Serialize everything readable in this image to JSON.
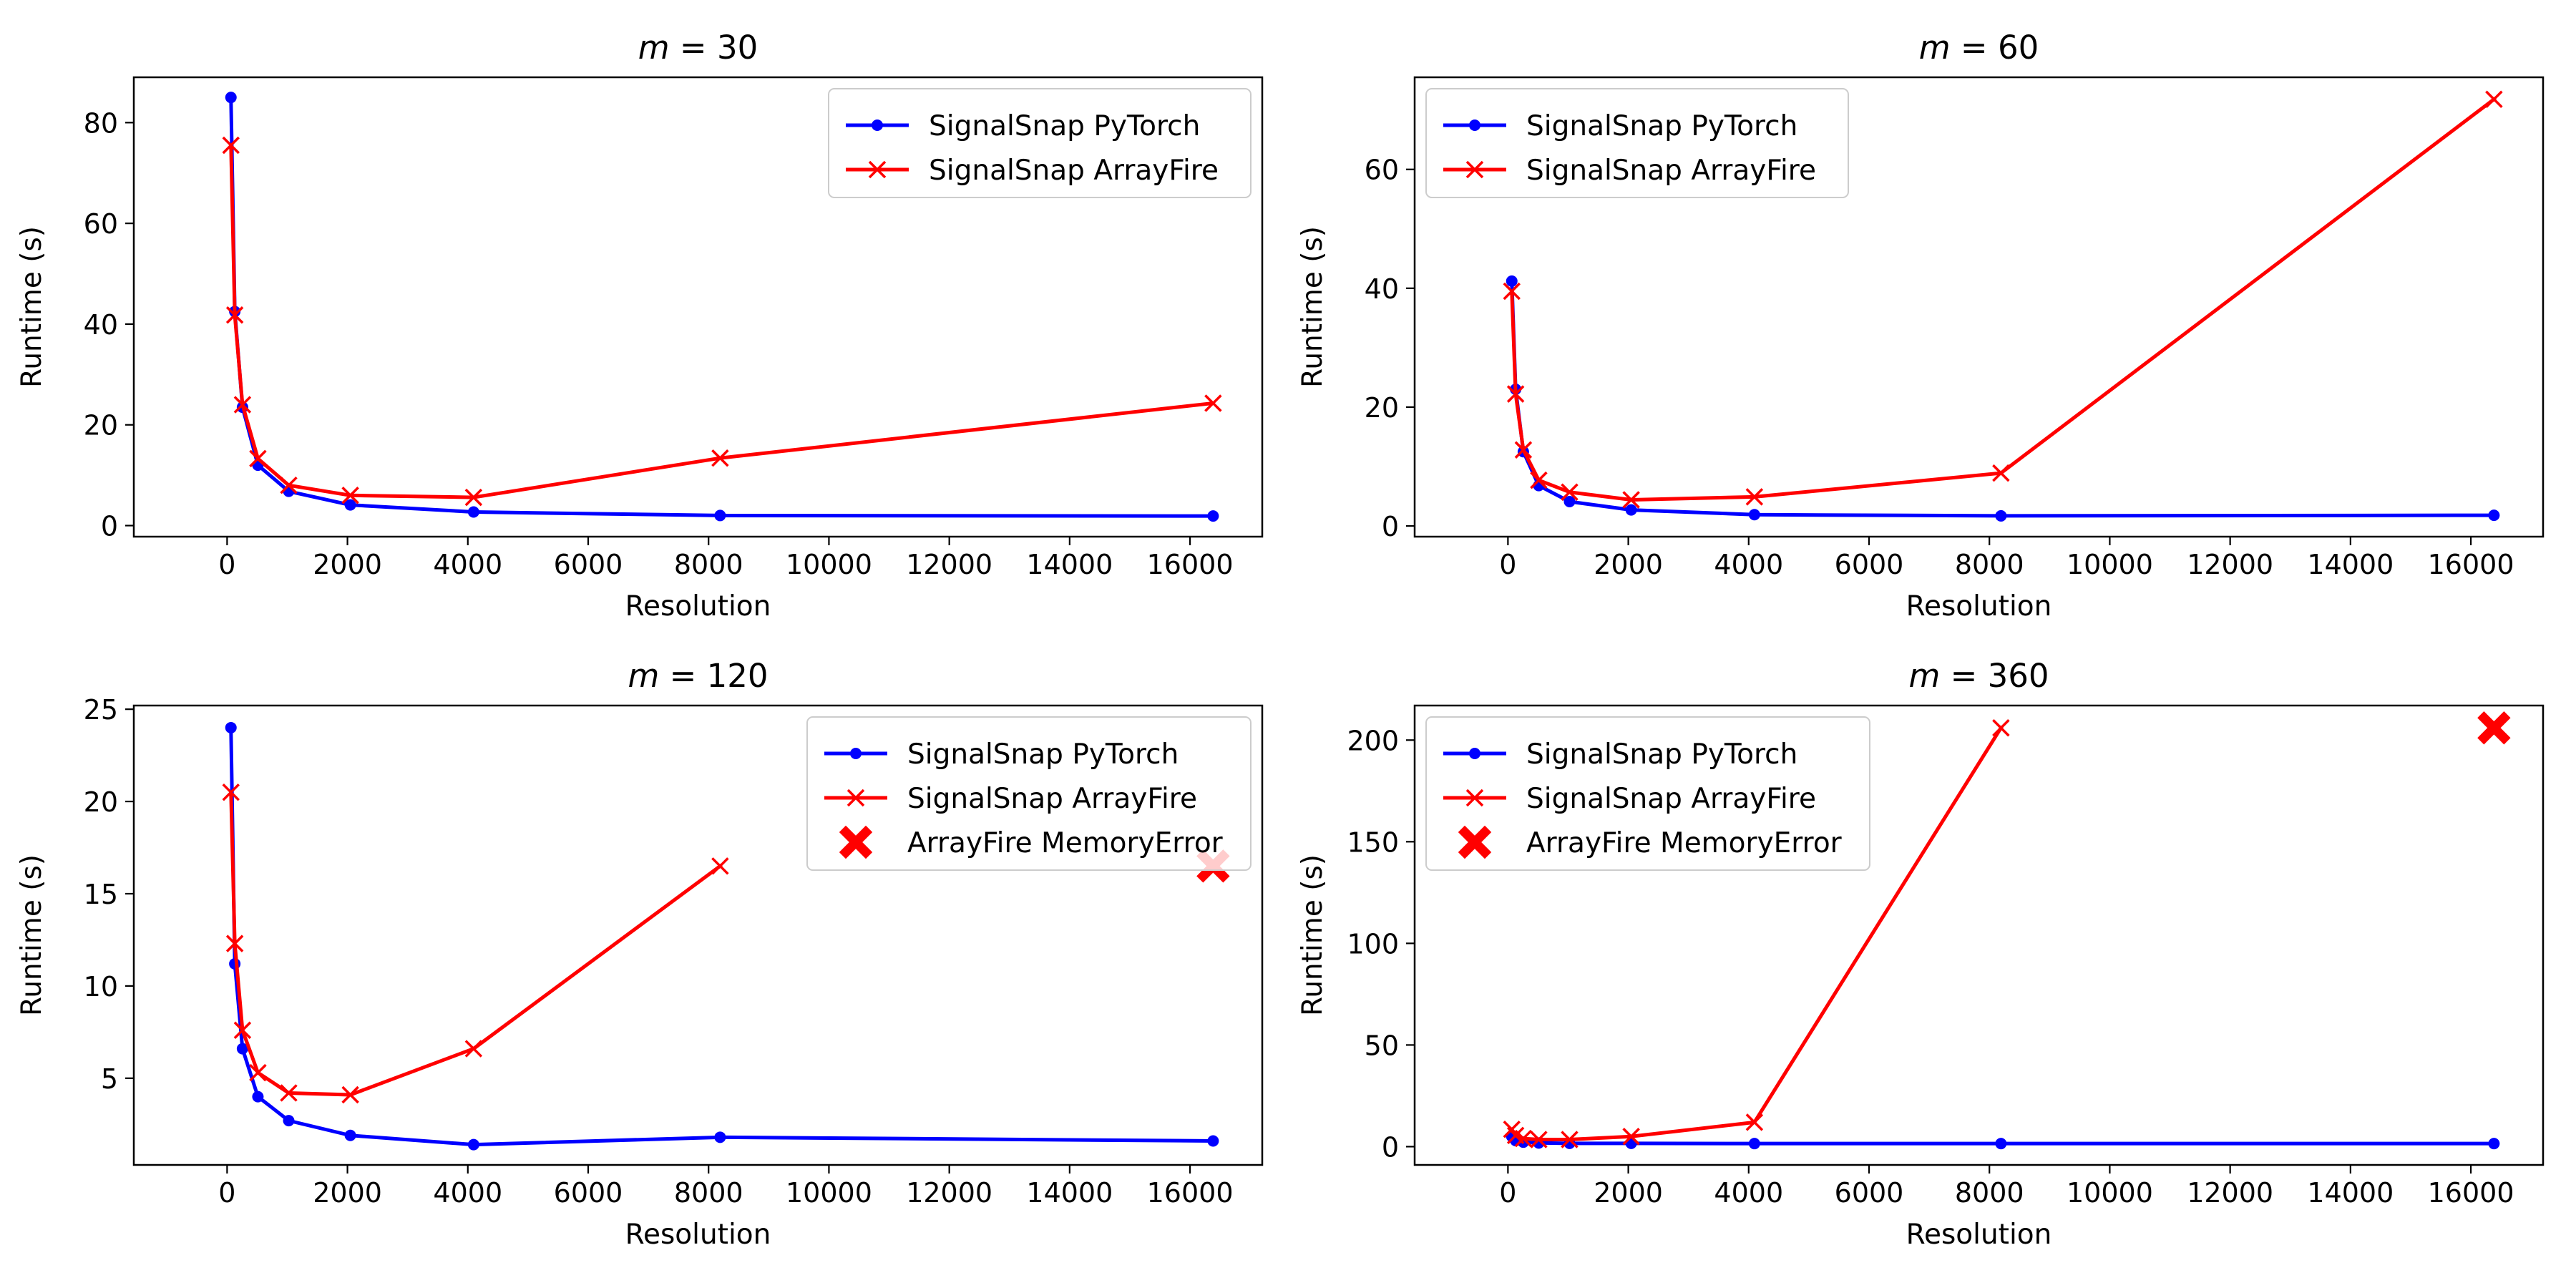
{
  "chart_data": [
    {
      "type": "line",
      "title_prefix": "m",
      "title_value": "= 30",
      "xlabel": "Resolution",
      "ylabel": "Runtime (s)",
      "xlim": [
        -1550,
        17200
      ],
      "ylim": [
        -2.2,
        89
      ],
      "xticks": [
        0,
        2000,
        4000,
        6000,
        8000,
        10000,
        12000,
        14000,
        16000
      ],
      "yticks": [
        0,
        20,
        40,
        60,
        80
      ],
      "legend_position": "top-right",
      "series": [
        {
          "name": "SignalSnap PyTorch",
          "color": "#0000ff",
          "marker": "dot",
          "x": [
            64,
            128,
            256,
            512,
            1024,
            2048,
            4096,
            8192,
            16384
          ],
          "y": [
            85,
            42.5,
            23.5,
            12,
            6.8,
            4.1,
            2.7,
            2.0,
            1.9
          ]
        },
        {
          "name": "SignalSnap ArrayFire",
          "color": "#ff0000",
          "marker": "x",
          "x": [
            64,
            128,
            256,
            512,
            1024,
            2048,
            4096,
            8192,
            16384
          ],
          "y": [
            75.5,
            41.8,
            24,
            13.3,
            8,
            6,
            5.6,
            13.4,
            24.3
          ]
        }
      ]
    },
    {
      "type": "line",
      "title_prefix": "m",
      "title_value": "= 60",
      "xlabel": "Resolution",
      "ylabel": "Runtime (s)",
      "xlim": [
        -1550,
        17200
      ],
      "ylim": [
        -1.8,
        75.5
      ],
      "xticks": [
        0,
        2000,
        4000,
        6000,
        8000,
        10000,
        12000,
        14000,
        16000
      ],
      "yticks": [
        0,
        20,
        40,
        60
      ],
      "legend_position": "top-left",
      "series": [
        {
          "name": "SignalSnap PyTorch",
          "color": "#0000ff",
          "marker": "dot",
          "x": [
            64,
            128,
            256,
            512,
            1024,
            2048,
            4096,
            8192,
            16384
          ],
          "y": [
            41.2,
            23,
            12.5,
            6.8,
            4.1,
            2.7,
            1.9,
            1.7,
            1.8
          ]
        },
        {
          "name": "SignalSnap ArrayFire",
          "color": "#ff0000",
          "marker": "x",
          "x": [
            64,
            128,
            256,
            512,
            1024,
            2048,
            4096,
            8192,
            16384
          ],
          "y": [
            39.5,
            22.2,
            12.8,
            7.7,
            5.7,
            4.4,
            4.9,
            8.9,
            71.8
          ]
        }
      ]
    },
    {
      "type": "line",
      "title_prefix": "m",
      "title_value": "= 120",
      "xlabel": "Resolution",
      "ylabel": "Runtime (s)",
      "xlim": [
        -1550,
        17200
      ],
      "ylim": [
        0.3,
        25.2
      ],
      "xticks": [
        0,
        2000,
        4000,
        6000,
        8000,
        10000,
        12000,
        14000,
        16000
      ],
      "yticks": [
        5,
        10,
        15,
        20,
        25
      ],
      "legend_position": "top-right",
      "series": [
        {
          "name": "SignalSnap PyTorch",
          "color": "#0000ff",
          "marker": "dot",
          "x": [
            64,
            128,
            256,
            512,
            1024,
            2048,
            4096,
            8192,
            16384
          ],
          "y": [
            24,
            11.2,
            6.6,
            4,
            2.7,
            1.9,
            1.4,
            1.8,
            1.6
          ]
        },
        {
          "name": "SignalSnap ArrayFire",
          "color": "#ff0000",
          "marker": "x",
          "x": [
            64,
            128,
            256,
            512,
            1024,
            2048,
            4096,
            8192
          ],
          "y": [
            20.5,
            12.3,
            7.6,
            5.3,
            4.2,
            4.1,
            6.6,
            16.5
          ]
        },
        {
          "name": "ArrayFire MemoryError",
          "color": "#ff0000",
          "marker": "bigX",
          "x": [
            16384
          ],
          "y": [
            16.5
          ]
        }
      ]
    },
    {
      "type": "line",
      "title_prefix": "m",
      "title_value": "= 360",
      "xlabel": "Resolution",
      "ylabel": "Runtime (s)",
      "xlim": [
        -1550,
        17200
      ],
      "ylim": [
        -9,
        217
      ],
      "xticks": [
        0,
        2000,
        4000,
        6000,
        8000,
        10000,
        12000,
        14000,
        16000
      ],
      "yticks": [
        0,
        50,
        100,
        150,
        200
      ],
      "legend_position": "top-left",
      "series": [
        {
          "name": "SignalSnap PyTorch",
          "color": "#0000ff",
          "marker": "dot",
          "x": [
            64,
            128,
            256,
            512,
            1024,
            2048,
            4096,
            8192,
            16384
          ],
          "y": [
            5,
            3,
            2.2,
            1.8,
            1.6,
            1.6,
            1.5,
            1.5,
            1.5
          ]
        },
        {
          "name": "SignalSnap ArrayFire",
          "color": "#ff0000",
          "marker": "x",
          "x": [
            64,
            128,
            256,
            512,
            1024,
            2048,
            4096,
            8192
          ],
          "y": [
            8.5,
            5.5,
            4,
            3.5,
            3.5,
            5,
            12,
            206
          ]
        },
        {
          "name": "ArrayFire MemoryError",
          "color": "#ff0000",
          "marker": "bigX",
          "x": [
            16384
          ],
          "y": [
            206
          ]
        }
      ]
    }
  ]
}
